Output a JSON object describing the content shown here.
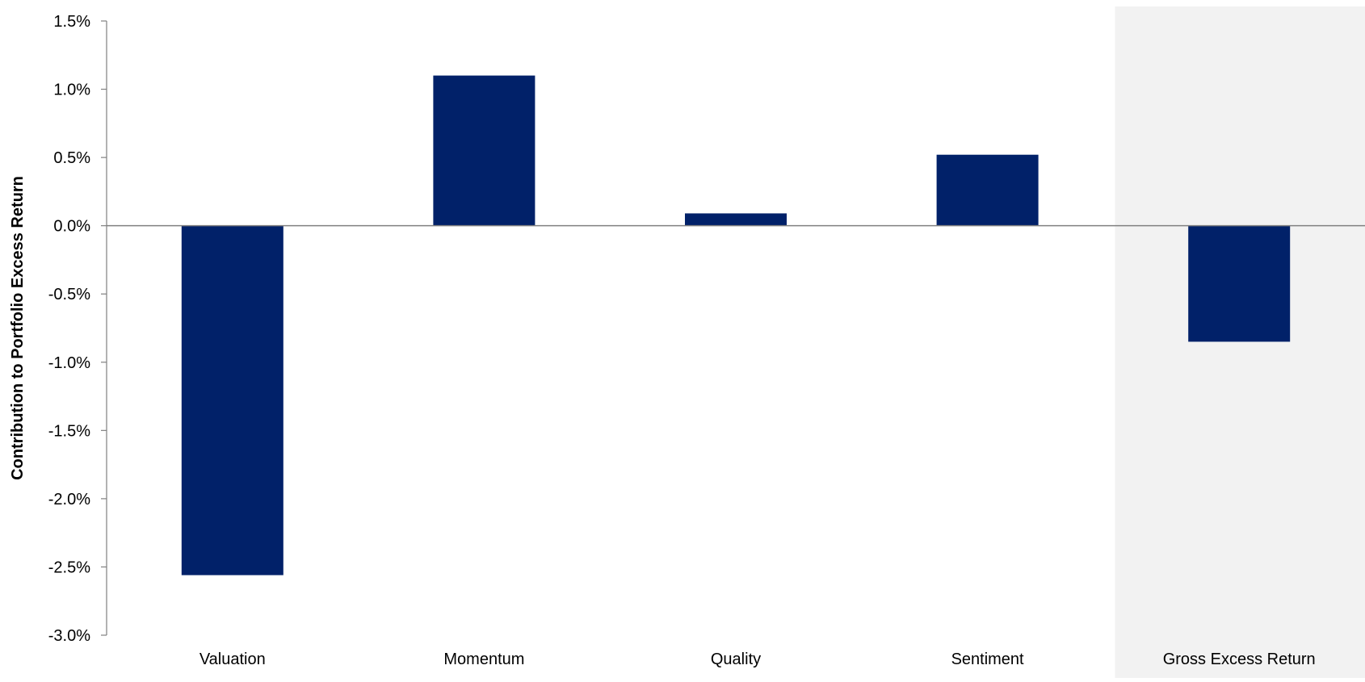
{
  "chart_data": {
    "type": "bar",
    "title": "",
    "xlabel": "",
    "ylabel": "Contribution to Portfolio Excess Return",
    "categories": [
      "Valuation",
      "Momentum",
      "Quality",
      "Sentiment",
      "Gross Excess Return"
    ],
    "series": [
      {
        "values": [
          -2.56,
          1.1,
          0.09,
          0.52,
          -0.85
        ]
      }
    ],
    "ylim": [
      -3.0,
      1.5
    ],
    "yticks": [
      1.5,
      1.0,
      0.5,
      0.0,
      -0.5,
      -1.0,
      -1.5,
      -2.0,
      -2.5,
      -3.0
    ],
    "ytick_labels": [
      "1.5%",
      "1.0%",
      "0.5%",
      "0.0%",
      "-0.5%",
      "-1.0%",
      "-1.5%",
      "-2.0%",
      "-2.5%",
      "-3.0%"
    ],
    "highlighted_category": "Gross Excess Return",
    "grid": false,
    "legend": "none",
    "colors": {
      "bar": "#012169",
      "highlight_background": "#f2f2f2",
      "axis": "#808080",
      "text": "#000000"
    }
  }
}
